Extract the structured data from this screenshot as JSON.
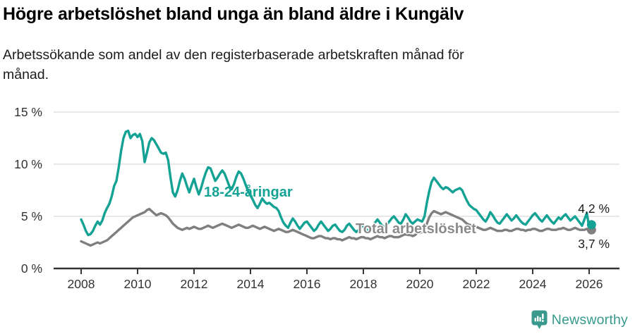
{
  "header": {
    "title": "Högre arbetslöshet bland unga än bland äldre i Kungälv",
    "subtitle": "Arbetssökande som andel av den registerbaserade arbetskraften månad för månad."
  },
  "colors": {
    "youth_line": "#13a294",
    "total_line": "#7f7f7f",
    "grid": "#e0e0e0",
    "axis": "#333333",
    "tick_text": "#333333",
    "annotation_text": "#1a1a1a",
    "brand_teal": "#38998c"
  },
  "chart_data": {
    "type": "line",
    "title": "Högre arbetslöshet bland unga än bland äldre i Kungälv",
    "subtitle": "Arbetssökande som andel av den registerbaserade arbetskraften månad för månad.",
    "x_unit": "month",
    "x_start": "2008-01",
    "x_end": "2026-02",
    "xlim_years": [
      2007.1,
      2027.1
    ],
    "ylim": [
      0,
      15
    ],
    "grid": "horizontal",
    "y_ticks": [
      0,
      5,
      10,
      15
    ],
    "y_tick_labels": [
      "0 %",
      "5 %",
      "10 %",
      "15 %"
    ],
    "x_tick_years": [
      2008,
      2010,
      2012,
      2014,
      2016,
      2018,
      2020,
      2022,
      2024,
      2026
    ],
    "x_tick_labels": [
      "2008",
      "2010",
      "2012",
      "2014",
      "2016",
      "2018",
      "2020",
      "2022",
      "2024",
      "2026"
    ],
    "legend": "inline-labels",
    "series": [
      {
        "name": "18-24-åringar",
        "color": "#13a294",
        "end_label": "4,2 %",
        "end_value": 4.2,
        "values": [
          4.7,
          4.2,
          3.6,
          3.2,
          3.3,
          3.6,
          4.1,
          4.5,
          4.2,
          4.6,
          5.3,
          5.8,
          6.2,
          6.9,
          7.9,
          8.4,
          9.7,
          11.3,
          12.5,
          13.1,
          13.2,
          12.5,
          12.8,
          12.9,
          12.6,
          12.9,
          12.2,
          10.2,
          11.1,
          12.1,
          12.5,
          12.3,
          11.9,
          11.5,
          11.1,
          11.0,
          11.1,
          10.4,
          8.7,
          7.3,
          6.9,
          7.5,
          8.4,
          9.1,
          8.6,
          7.9,
          7.3,
          8.0,
          8.6,
          7.8,
          7.1,
          7.7,
          8.5,
          9.2,
          9.7,
          9.6,
          9.0,
          8.4,
          8.7,
          9.1,
          9.4,
          9.1,
          8.5,
          7.9,
          7.6,
          8.1,
          8.8,
          9.3,
          9.1,
          8.6,
          8.0,
          7.4,
          7.0,
          6.6,
          6.1,
          5.8,
          6.2,
          6.7,
          6.4,
          6.2,
          6.3,
          6.1,
          5.9,
          5.8,
          5.5,
          4.9,
          4.4,
          4.1,
          3.9,
          4.4,
          4.8,
          4.5,
          4.1,
          3.8,
          4.1,
          4.4,
          4.5,
          4.2,
          3.9,
          3.6,
          3.8,
          4.2,
          4.5,
          4.2,
          3.9,
          3.6,
          3.8,
          4.1,
          4.2,
          3.9,
          3.6,
          3.5,
          3.7,
          4.1,
          4.3,
          4.0,
          3.7,
          3.5,
          3.7,
          4.0,
          4.1,
          3.8,
          3.6,
          3.7,
          4.0,
          4.4,
          4.7,
          4.4,
          4.1,
          4.0,
          4.2,
          4.5,
          4.8,
          5.0,
          4.7,
          4.4,
          4.3,
          4.7,
          5.2,
          4.9,
          4.5,
          4.3,
          4.5,
          4.7,
          4.6,
          4.5,
          5.0,
          6.3,
          7.4,
          8.3,
          8.7,
          8.4,
          8.1,
          7.8,
          7.6,
          7.8,
          7.7,
          7.5,
          7.3,
          7.5,
          7.6,
          7.7,
          7.5,
          7.0,
          6.5,
          6.1,
          5.9,
          5.7,
          5.6,
          5.3,
          5.0,
          4.7,
          4.5,
          4.9,
          5.4,
          5.1,
          4.7,
          4.4,
          4.3,
          4.6,
          4.9,
          5.2,
          4.9,
          4.6,
          4.8,
          5.1,
          4.8,
          4.5,
          4.3,
          4.2,
          4.5,
          4.8,
          5.1,
          5.3,
          5.0,
          4.7,
          4.5,
          4.8,
          5.1,
          4.8,
          4.5,
          4.3,
          4.6,
          4.9,
          4.7,
          5.0,
          5.2,
          4.9,
          4.6,
          4.8,
          5.0,
          4.7,
          4.4,
          4.1,
          4.7,
          5.3,
          4.0,
          4.2
        ]
      },
      {
        "name": "Total arbetslöshet",
        "color": "#7f7f7f",
        "end_label": "3,7 %",
        "end_value": 3.7,
        "values": [
          2.6,
          2.5,
          2.4,
          2.3,
          2.2,
          2.3,
          2.4,
          2.5,
          2.4,
          2.5,
          2.6,
          2.7,
          2.9,
          3.1,
          3.3,
          3.5,
          3.7,
          3.9,
          4.1,
          4.3,
          4.5,
          4.7,
          4.9,
          5.0,
          5.1,
          5.2,
          5.3,
          5.4,
          5.6,
          5.7,
          5.5,
          5.3,
          5.1,
          5.2,
          5.3,
          5.2,
          5.1,
          4.9,
          4.6,
          4.3,
          4.1,
          3.9,
          3.8,
          3.7,
          3.8,
          3.9,
          3.8,
          3.9,
          4.0,
          3.9,
          3.8,
          3.8,
          3.9,
          4.0,
          4.1,
          4.0,
          3.9,
          4.0,
          4.1,
          4.2,
          4.3,
          4.2,
          4.1,
          4.0,
          3.9,
          4.0,
          4.1,
          4.2,
          4.1,
          4.0,
          3.9,
          3.9,
          4.0,
          4.1,
          4.0,
          3.9,
          3.8,
          3.9,
          4.0,
          3.9,
          3.8,
          3.7,
          3.6,
          3.7,
          3.8,
          3.7,
          3.6,
          3.5,
          3.5,
          3.6,
          3.7,
          3.6,
          3.5,
          3.4,
          3.3,
          3.2,
          3.1,
          3.0,
          2.9,
          2.9,
          3.0,
          3.1,
          3.1,
          3.0,
          2.9,
          2.9,
          2.8,
          2.9,
          2.9,
          2.8,
          2.8,
          2.7,
          2.8,
          2.9,
          3.0,
          2.9,
          2.9,
          2.8,
          2.9,
          3.0,
          3.0,
          2.9,
          2.9,
          2.8,
          2.9,
          3.0,
          3.1,
          3.0,
          3.0,
          2.9,
          3.0,
          3.1,
          3.1,
          3.0,
          3.0,
          3.0,
          3.1,
          3.2,
          3.3,
          3.2,
          3.2,
          3.1,
          3.2,
          3.4,
          3.4,
          3.5,
          3.7,
          4.3,
          4.9,
          5.3,
          5.5,
          5.4,
          5.3,
          5.2,
          5.3,
          5.4,
          5.3,
          5.2,
          5.1,
          5.0,
          4.9,
          4.8,
          4.7,
          4.5,
          4.3,
          4.2,
          4.1,
          4.1,
          4.0,
          3.9,
          3.8,
          3.7,
          3.7,
          3.8,
          3.9,
          3.8,
          3.7,
          3.6,
          3.6,
          3.6,
          3.7,
          3.7,
          3.6,
          3.6,
          3.7,
          3.8,
          3.8,
          3.7,
          3.7,
          3.6,
          3.7,
          3.7,
          3.8,
          3.8,
          3.7,
          3.6,
          3.6,
          3.7,
          3.8,
          3.8,
          3.7,
          3.7,
          3.7,
          3.8,
          3.8,
          3.9,
          3.8,
          3.7,
          3.7,
          3.8,
          3.9,
          3.8,
          3.7,
          3.7,
          3.7,
          3.8,
          3.7,
          3.7
        ]
      }
    ]
  },
  "annotations": {
    "youth_label": "18-24-åringar",
    "total_label": "Total arbetslöshet",
    "youth_end_label": "4,2 %",
    "total_end_label": "3,7 %"
  },
  "footer": {
    "brand": "Newsworthy",
    "logo_icon": "bar-chart-speech-bubble"
  }
}
